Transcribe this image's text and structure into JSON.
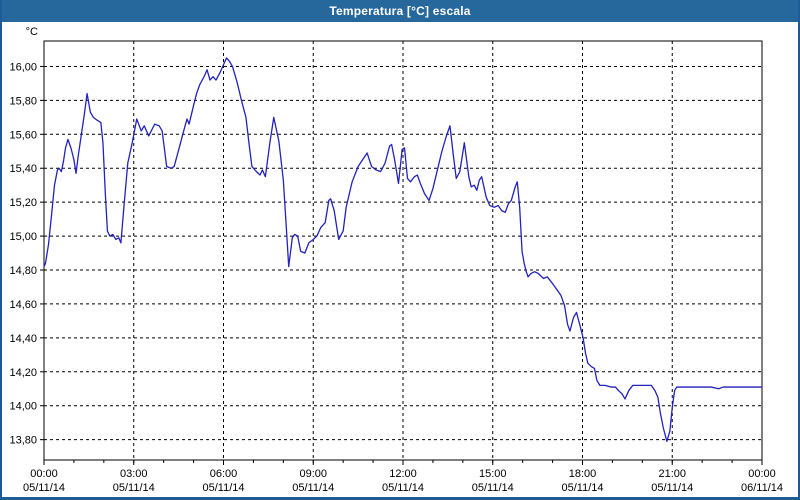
{
  "window": {
    "title": "Temperatura [°C] escala"
  },
  "colors": {
    "title_bar_bg": "#26689c",
    "title_text": "#ffffff",
    "frame_border": "#1e5c96",
    "plot_bg": "#ffffff",
    "plot_border": "#000000",
    "grid": "#000000",
    "axis_text": "#000000",
    "series_line": "#2222be"
  },
  "axes": {
    "y_unit_label": "°C",
    "y_ticks": [
      {
        "value": 16.0,
        "label": "16,00"
      },
      {
        "value": 15.8,
        "label": "15,80"
      },
      {
        "value": 15.6,
        "label": "15,60"
      },
      {
        "value": 15.4,
        "label": "15,40"
      },
      {
        "value": 15.2,
        "label": "15,20"
      },
      {
        "value": 15.0,
        "label": "15,00"
      },
      {
        "value": 14.8,
        "label": "14,80"
      },
      {
        "value": 14.6,
        "label": "14,60"
      },
      {
        "value": 14.4,
        "label": "14,40"
      },
      {
        "value": 14.2,
        "label": "14,20"
      },
      {
        "value": 14.0,
        "label": "14,00"
      },
      {
        "value": 13.8,
        "label": "13,80"
      }
    ],
    "x_ticks": [
      {
        "hours": 0,
        "time": "00:00",
        "date": "05/11/14"
      },
      {
        "hours": 3,
        "time": "03:00",
        "date": "05/11/14"
      },
      {
        "hours": 6,
        "time": "06:00",
        "date": "05/11/14"
      },
      {
        "hours": 9,
        "time": "09:00",
        "date": "05/11/14"
      },
      {
        "hours": 12,
        "time": "12:00",
        "date": "05/11/14"
      },
      {
        "hours": 15,
        "time": "15:00",
        "date": "05/11/14"
      },
      {
        "hours": 18,
        "time": "18:00",
        "date": "05/11/14"
      },
      {
        "hours": 21,
        "time": "21:00",
        "date": "05/11/14"
      },
      {
        "hours": 24,
        "time": "00:00",
        "date": "06/11/14"
      }
    ],
    "minor_x_tick_every_hours": 1
  },
  "chart_data": {
    "type": "line",
    "title": "Temperatura [°C] escala",
    "xlabel": "",
    "ylabel": "°C",
    "ylim": [
      13.68,
      16.15
    ],
    "xlim_hours": [
      0,
      24
    ],
    "grid": "dashed",
    "legend": "none",
    "series": [
      {
        "name": "Temperatura",
        "points": [
          [
            0,
            14.82
          ],
          [
            0.05,
            14.84
          ],
          [
            0.15,
            14.95
          ],
          [
            0.25,
            15.12
          ],
          [
            0.35,
            15.3
          ],
          [
            0.45,
            15.39
          ],
          [
            0.5,
            15.4
          ],
          [
            0.58,
            15.38
          ],
          [
            0.65,
            15.44
          ],
          [
            0.72,
            15.52
          ],
          [
            0.8,
            15.57
          ],
          [
            0.9,
            15.52
          ],
          [
            1,
            15.45
          ],
          [
            1.07,
            15.37
          ],
          [
            1.15,
            15.48
          ],
          [
            1.25,
            15.6
          ],
          [
            1.35,
            15.72
          ],
          [
            1.44,
            15.84
          ],
          [
            1.55,
            15.73
          ],
          [
            1.65,
            15.7
          ],
          [
            1.8,
            15.68
          ],
          [
            1.9,
            15.67
          ],
          [
            1.97,
            15.55
          ],
          [
            2.05,
            15.25
          ],
          [
            2.12,
            15.03
          ],
          [
            2.2,
            15
          ],
          [
            2.3,
            15.01
          ],
          [
            2.4,
            14.98
          ],
          [
            2.5,
            14.99
          ],
          [
            2.57,
            14.96
          ],
          [
            2.68,
            15.19
          ],
          [
            2.8,
            15.43
          ],
          [
            2.95,
            15.55
          ],
          [
            3.1,
            15.69
          ],
          [
            3.25,
            15.62
          ],
          [
            3.35,
            15.65
          ],
          [
            3.5,
            15.59
          ],
          [
            3.7,
            15.66
          ],
          [
            3.85,
            15.65
          ],
          [
            3.95,
            15.62
          ],
          [
            4.1,
            15.41
          ],
          [
            4.25,
            15.4
          ],
          [
            4.35,
            15.41
          ],
          [
            4.55,
            15.54
          ],
          [
            4.7,
            15.64
          ],
          [
            4.78,
            15.69
          ],
          [
            4.85,
            15.66
          ],
          [
            5,
            15.77
          ],
          [
            5.1,
            15.84
          ],
          [
            5.2,
            15.89
          ],
          [
            5.35,
            15.94
          ],
          [
            5.45,
            15.98
          ],
          [
            5.55,
            15.92
          ],
          [
            5.65,
            15.94
          ],
          [
            5.75,
            15.92
          ],
          [
            5.9,
            15.97
          ],
          [
            6,
            16.01
          ],
          [
            6.1,
            16.05
          ],
          [
            6.2,
            16.03
          ],
          [
            6.3,
            16
          ],
          [
            6.45,
            15.91
          ],
          [
            6.6,
            15.8
          ],
          [
            6.75,
            15.7
          ],
          [
            6.85,
            15.55
          ],
          [
            6.95,
            15.41
          ],
          [
            7.1,
            15.38
          ],
          [
            7.22,
            15.36
          ],
          [
            7.3,
            15.39
          ],
          [
            7.4,
            15.35
          ],
          [
            7.55,
            15.55
          ],
          [
            7.68,
            15.7
          ],
          [
            7.85,
            15.56
          ],
          [
            8,
            15.33
          ],
          [
            8.1,
            15.05
          ],
          [
            8.18,
            14.82
          ],
          [
            8.3,
            14.99
          ],
          [
            8.38,
            15.01
          ],
          [
            8.48,
            15
          ],
          [
            8.58,
            14.91
          ],
          [
            8.72,
            14.9
          ],
          [
            8.85,
            14.96
          ],
          [
            9,
            14.98
          ],
          [
            9.12,
            15
          ],
          [
            9.25,
            15.05
          ],
          [
            9.4,
            15.08
          ],
          [
            9.52,
            15.21
          ],
          [
            9.58,
            15.22
          ],
          [
            9.7,
            15.15
          ],
          [
            9.85,
            14.98
          ],
          [
            10,
            15.03
          ],
          [
            10.1,
            15.17
          ],
          [
            10.3,
            15.32
          ],
          [
            10.5,
            15.41
          ],
          [
            10.65,
            15.45
          ],
          [
            10.8,
            15.49
          ],
          [
            10.95,
            15.41
          ],
          [
            11.1,
            15.39
          ],
          [
            11.25,
            15.38
          ],
          [
            11.4,
            15.43
          ],
          [
            11.55,
            15.53
          ],
          [
            11.62,
            15.54
          ],
          [
            11.72,
            15.45
          ],
          [
            11.85,
            15.31
          ],
          [
            11.97,
            15.51
          ],
          [
            12.05,
            15.52
          ],
          [
            12.15,
            15.34
          ],
          [
            12.25,
            15.32
          ],
          [
            12.38,
            15.35
          ],
          [
            12.48,
            15.36
          ],
          [
            12.58,
            15.31
          ],
          [
            12.72,
            15.25
          ],
          [
            12.87,
            15.21
          ],
          [
            13,
            15.28
          ],
          [
            13.15,
            15.39
          ],
          [
            13.3,
            15.5
          ],
          [
            13.45,
            15.59
          ],
          [
            13.57,
            15.65
          ],
          [
            13.68,
            15.48
          ],
          [
            13.78,
            15.34
          ],
          [
            13.9,
            15.38
          ],
          [
            14.05,
            15.55
          ],
          [
            14.2,
            15.35
          ],
          [
            14.28,
            15.29
          ],
          [
            14.38,
            15.3
          ],
          [
            14.47,
            15.27
          ],
          [
            14.55,
            15.33
          ],
          [
            14.63,
            15.35
          ],
          [
            14.78,
            15.23
          ],
          [
            14.9,
            15.18
          ],
          [
            15.05,
            15.17
          ],
          [
            15.18,
            15.18
          ],
          [
            15.3,
            15.15
          ],
          [
            15.42,
            15.14
          ],
          [
            15.52,
            15.19
          ],
          [
            15.62,
            15.21
          ],
          [
            15.75,
            15.29
          ],
          [
            15.82,
            15.32
          ],
          [
            15.9,
            15.17
          ],
          [
            15.98,
            14.91
          ],
          [
            16.05,
            14.84
          ],
          [
            16.12,
            14.79
          ],
          [
            16.18,
            14.76
          ],
          [
            16.28,
            14.78
          ],
          [
            16.4,
            14.79
          ],
          [
            16.52,
            14.78
          ],
          [
            16.7,
            14.75
          ],
          [
            16.82,
            14.76
          ],
          [
            17,
            14.72
          ],
          [
            17.12,
            14.69
          ],
          [
            17.28,
            14.65
          ],
          [
            17.4,
            14.59
          ],
          [
            17.5,
            14.48
          ],
          [
            17.58,
            14.44
          ],
          [
            17.7,
            14.52
          ],
          [
            17.8,
            14.55
          ],
          [
            17.92,
            14.47
          ],
          [
            18.02,
            14.4
          ],
          [
            18.1,
            14.31
          ],
          [
            18.18,
            14.25
          ],
          [
            18.3,
            14.23
          ],
          [
            18.4,
            14.22
          ],
          [
            18.48,
            14.15
          ],
          [
            18.58,
            14.12
          ],
          [
            18.75,
            14.12
          ],
          [
            18.95,
            14.11
          ],
          [
            19.1,
            14.11
          ],
          [
            19.2,
            14.09
          ],
          [
            19.32,
            14.07
          ],
          [
            19.42,
            14.04
          ],
          [
            19.55,
            14.09
          ],
          [
            19.68,
            14.12
          ],
          [
            19.9,
            14.12
          ],
          [
            20.1,
            14.12
          ],
          [
            20.3,
            14.12
          ],
          [
            20.42,
            14.09
          ],
          [
            20.52,
            14.05
          ],
          [
            20.6,
            13.96
          ],
          [
            20.7,
            13.87
          ],
          [
            20.82,
            13.79
          ],
          [
            20.92,
            13.85
          ],
          [
            21,
            13.99
          ],
          [
            21.08,
            14.09
          ],
          [
            21.15,
            14.11
          ],
          [
            21.4,
            14.11
          ],
          [
            21.7,
            14.11
          ],
          [
            22,
            14.11
          ],
          [
            22.3,
            14.11
          ],
          [
            22.55,
            14.1
          ],
          [
            22.7,
            14.11
          ],
          [
            23,
            14.11
          ],
          [
            23.3,
            14.11
          ],
          [
            23.6,
            14.11
          ],
          [
            24,
            14.11
          ]
        ]
      }
    ]
  }
}
